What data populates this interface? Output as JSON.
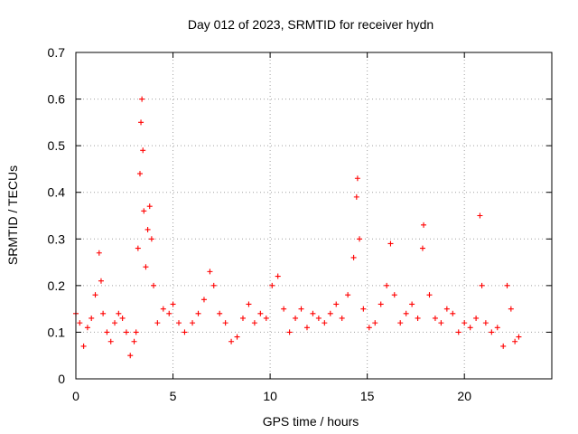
{
  "chart_data": {
    "type": "scatter",
    "title": "Day 012 of 2023, SRMTID for receiver hydn",
    "xlabel": "GPS time / hours",
    "ylabel": "SRMTID / TECUs",
    "xlim": [
      0,
      24.5
    ],
    "ylim": [
      0,
      0.7
    ],
    "x_ticks": [
      0,
      5,
      10,
      15,
      20
    ],
    "x_tick_labels": [
      "0",
      "5",
      "10",
      "15",
      "20"
    ],
    "y_ticks": [
      0,
      0.1,
      0.2,
      0.3,
      0.4,
      0.5,
      0.6,
      0.7
    ],
    "y_tick_labels": [
      "0",
      "0.1",
      "0.2",
      "0.3",
      "0.4",
      "0.5",
      "0.6",
      "0.7"
    ],
    "grid": true,
    "marker": "+",
    "series": [
      {
        "name": "SRMTID",
        "color": "#ff0000",
        "x": [
          0.0,
          0.2,
          0.4,
          0.6,
          0.8,
          1.0,
          1.2,
          1.3,
          1.4,
          1.6,
          1.8,
          2.0,
          2.2,
          2.4,
          2.6,
          2.8,
          3.0,
          3.1,
          3.2,
          3.3,
          3.35,
          3.4,
          3.45,
          3.5,
          3.6,
          3.7,
          3.8,
          3.9,
          4.0,
          4.2,
          4.5,
          4.8,
          5.0,
          5.3,
          5.6,
          6.0,
          6.3,
          6.6,
          6.9,
          7.1,
          7.4,
          7.7,
          8.0,
          8.3,
          8.6,
          8.9,
          9.2,
          9.5,
          9.8,
          10.1,
          10.4,
          10.7,
          11.0,
          11.3,
          11.6,
          11.9,
          12.2,
          12.5,
          12.8,
          13.1,
          13.4,
          13.7,
          14.0,
          14.3,
          14.45,
          14.5,
          14.6,
          14.8,
          15.1,
          15.4,
          15.7,
          16.0,
          16.2,
          16.4,
          16.7,
          17.0,
          17.3,
          17.6,
          17.85,
          17.9,
          18.2,
          18.5,
          18.8,
          19.1,
          19.4,
          19.7,
          20.0,
          20.3,
          20.6,
          20.8,
          20.9,
          21.1,
          21.4,
          21.7,
          22.0,
          22.2,
          22.4,
          22.6,
          22.8
        ],
        "y": [
          0.14,
          0.12,
          0.07,
          0.11,
          0.13,
          0.18,
          0.27,
          0.21,
          0.14,
          0.1,
          0.08,
          0.12,
          0.14,
          0.13,
          0.1,
          0.05,
          0.08,
          0.1,
          0.28,
          0.44,
          0.55,
          0.6,
          0.49,
          0.36,
          0.24,
          0.32,
          0.37,
          0.3,
          0.2,
          0.12,
          0.15,
          0.14,
          0.16,
          0.12,
          0.1,
          0.12,
          0.14,
          0.17,
          0.23,
          0.2,
          0.14,
          0.12,
          0.08,
          0.09,
          0.13,
          0.16,
          0.12,
          0.14,
          0.13,
          0.2,
          0.22,
          0.15,
          0.1,
          0.13,
          0.15,
          0.11,
          0.14,
          0.13,
          0.12,
          0.14,
          0.16,
          0.13,
          0.18,
          0.26,
          0.39,
          0.43,
          0.3,
          0.15,
          0.11,
          0.12,
          0.16,
          0.2,
          0.29,
          0.18,
          0.12,
          0.14,
          0.16,
          0.13,
          0.28,
          0.33,
          0.18,
          0.13,
          0.12,
          0.15,
          0.14,
          0.1,
          0.12,
          0.11,
          0.13,
          0.35,
          0.2,
          0.12,
          0.1,
          0.11,
          0.07,
          0.2,
          0.15,
          0.08,
          0.09
        ]
      }
    ]
  }
}
